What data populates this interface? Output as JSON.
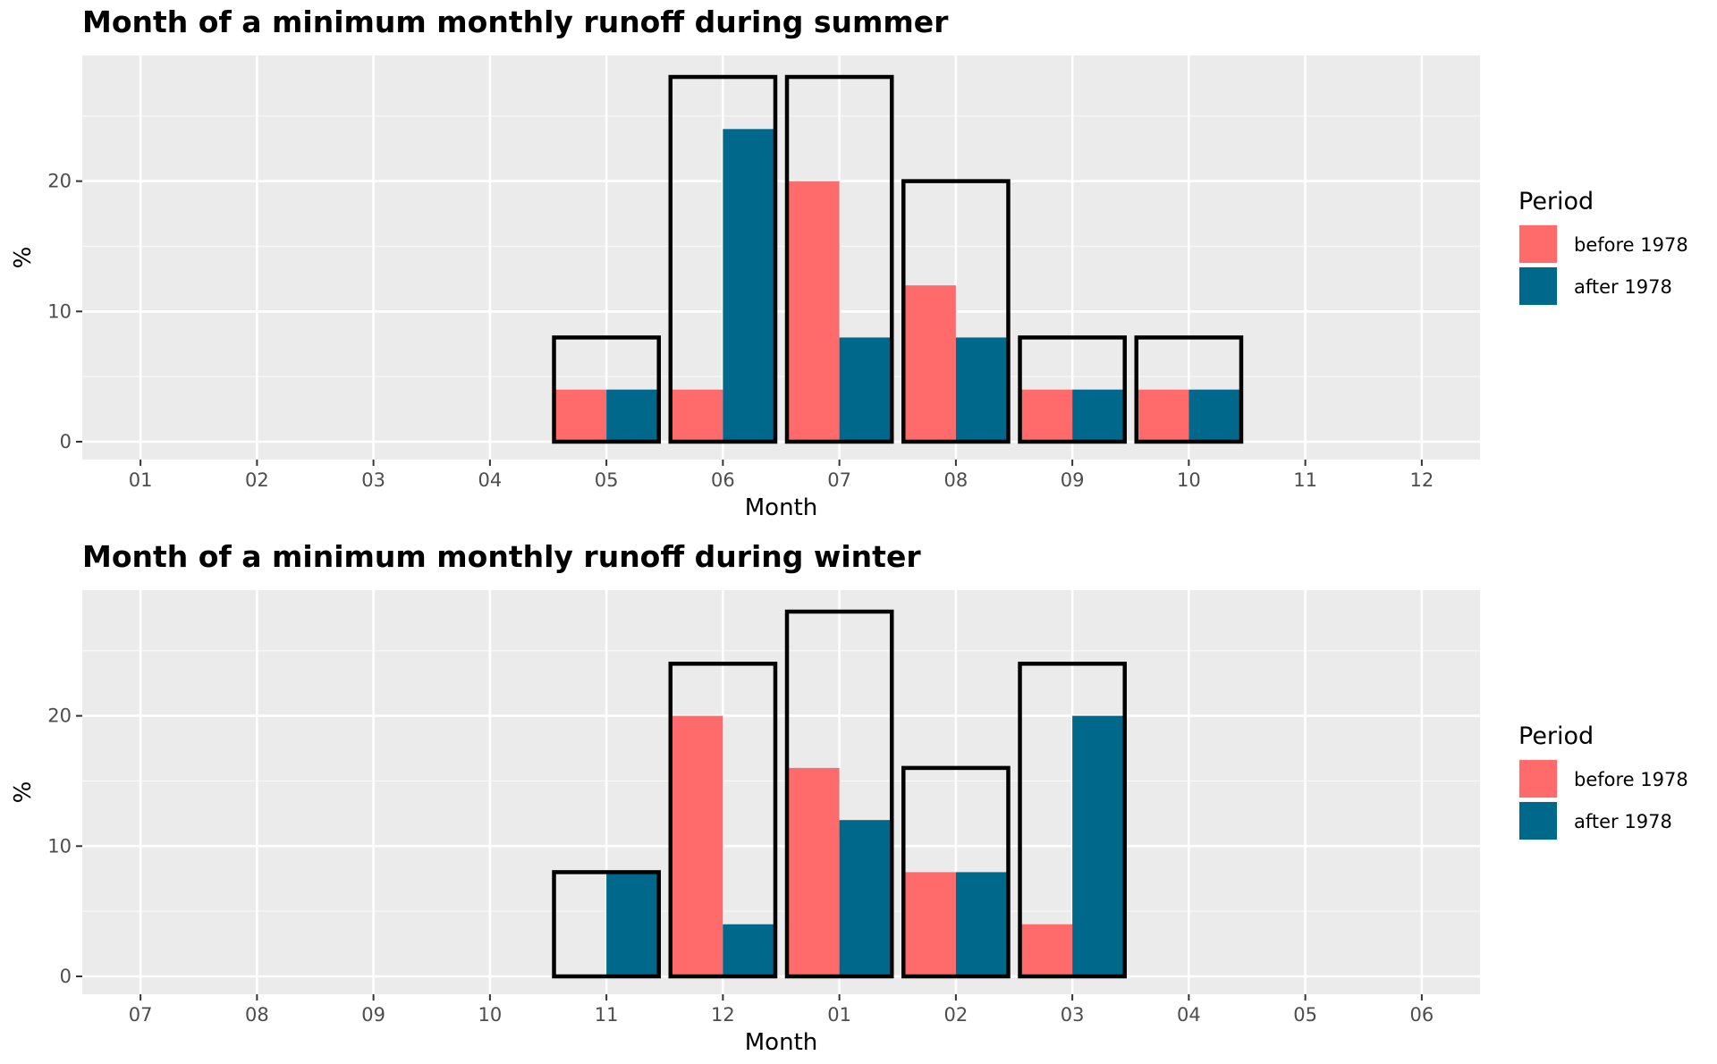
{
  "chart_data": [
    {
      "type": "bar",
      "title": "Month of a minimum monthly runoff during summer",
      "xlabel": "Month",
      "ylabel": "%",
      "ylim": [
        0,
        30
      ],
      "yticks": [
        0,
        10,
        20
      ],
      "categories": [
        "01",
        "02",
        "03",
        "04",
        "05",
        "06",
        "07",
        "08",
        "09",
        "10",
        "11",
        "12"
      ],
      "series": [
        {
          "name": "before 1978",
          "color": "#ff6b6b",
          "values": [
            0,
            0,
            0,
            0,
            4,
            4,
            20,
            12,
            4,
            4,
            0,
            0
          ]
        },
        {
          "name": "after 1978",
          "color": "#00688b",
          "values": [
            0,
            0,
            0,
            0,
            4,
            24,
            8,
            8,
            4,
            4,
            0,
            0
          ]
        }
      ],
      "totals": [
        0,
        0,
        0,
        0,
        8,
        28,
        28,
        20,
        8,
        8,
        0,
        0
      ],
      "legend": {
        "title": "Period",
        "placement": "right"
      },
      "grid": true
    },
    {
      "type": "bar",
      "title": "Month of a minimum monthly runoff during winter",
      "xlabel": "Month",
      "ylabel": "%",
      "ylim": [
        0,
        30
      ],
      "yticks": [
        0,
        10,
        20
      ],
      "categories": [
        "07",
        "08",
        "09",
        "10",
        "11",
        "12",
        "01",
        "02",
        "03",
        "04",
        "05",
        "06"
      ],
      "series": [
        {
          "name": "before 1978",
          "color": "#ff6b6b",
          "values": [
            0,
            0,
            0,
            0,
            0,
            20,
            16,
            8,
            4,
            0,
            0,
            0
          ]
        },
        {
          "name": "after 1978",
          "color": "#00688b",
          "values": [
            0,
            0,
            0,
            0,
            8,
            4,
            12,
            8,
            20,
            0,
            0,
            0
          ]
        }
      ],
      "totals": [
        0,
        0,
        0,
        0,
        8,
        24,
        28,
        16,
        24,
        0,
        0,
        0
      ],
      "legend": {
        "title": "Period",
        "placement": "right"
      },
      "grid": true
    }
  ]
}
